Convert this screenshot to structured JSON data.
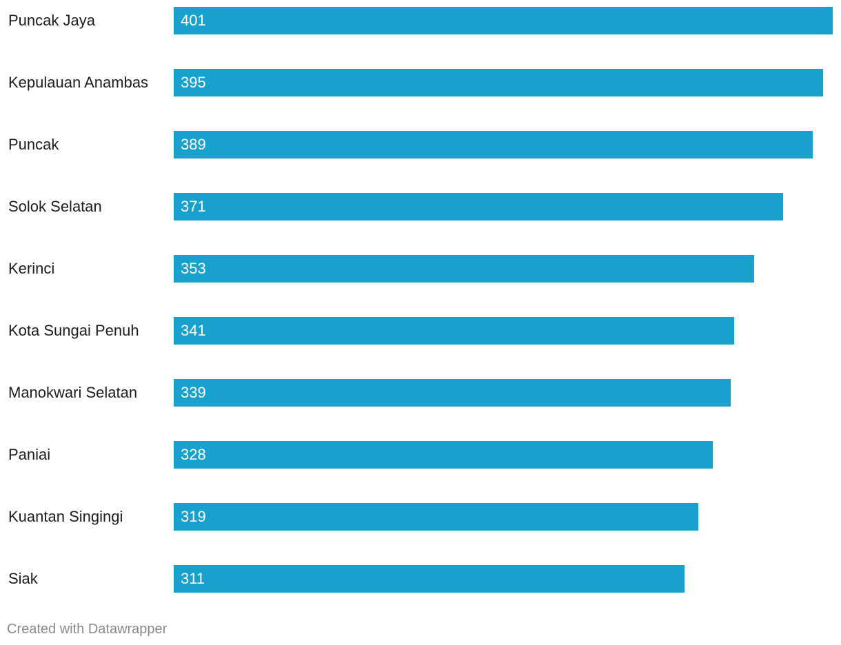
{
  "chart_data": {
    "type": "bar",
    "orientation": "horizontal",
    "categories": [
      "Puncak Jaya",
      "Kepulauan Anambas",
      "Puncak",
      "Solok Selatan",
      "Kerinci",
      "Kota Sungai Penuh",
      "Manokwari Selatan",
      "Paniai",
      "Kuantan Singingi",
      "Siak"
    ],
    "values": [
      401,
      395,
      389,
      371,
      353,
      341,
      339,
      328,
      319,
      311
    ],
    "bar_color": "#18a1cd",
    "label_color": "#ffffff",
    "xlim": [
      0,
      401
    ],
    "grid": false,
    "legend": "none"
  },
  "footer": {
    "credit": "Created with Datawrapper"
  }
}
